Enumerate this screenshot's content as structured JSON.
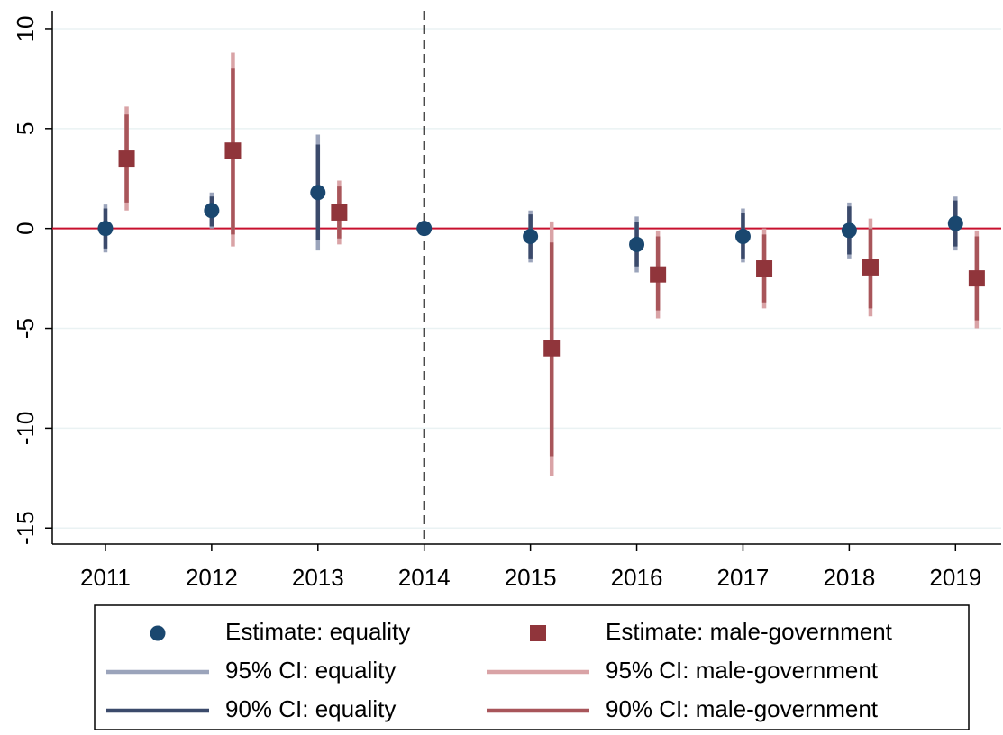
{
  "chart_data": {
    "type": "coefplot",
    "xlim": [
      2010.5,
      2019.43
    ],
    "xticks": [
      2011,
      2012,
      2013,
      2014,
      2015,
      2016,
      2017,
      2018,
      2019
    ],
    "ylim": [
      -15.8,
      10.9
    ],
    "yticks": [
      10,
      5,
      0,
      -5,
      -10,
      -15
    ],
    "grid": true,
    "hline": 0,
    "hline_color": "#c8102e",
    "vline": 2014,
    "legend": "bottom",
    "series": [
      {
        "name": "Estimate: equality",
        "kind": "marker",
        "marker": "circle",
        "color": "#1a476f",
        "x": [
          2011,
          2012,
          2013,
          2014,
          2015,
          2016,
          2017,
          2018,
          2019
        ],
        "values": [
          0,
          0.9,
          1.8,
          0,
          -0.4,
          -0.8,
          -0.4,
          -0.1,
          0.25
        ]
      },
      {
        "name": "Estimate: male-government",
        "kind": "marker",
        "marker": "square",
        "color": "#90353b",
        "x": [
          2011.2,
          2012.2,
          2013.2,
          2014.2,
          2015.2,
          2016.2,
          2017.2,
          2018.2,
          2019.2
        ],
        "values": [
          3.5,
          3.9,
          0.8,
          null,
          -6.0,
          -2.3,
          -2.0,
          -1.95,
          -2.5
        ]
      },
      {
        "name": "95% CI: equality",
        "kind": "interval",
        "color": "#9ba4bb",
        "x": [
          2011,
          2012,
          2013,
          2014,
          2015,
          2016,
          2017,
          2018,
          2019
        ],
        "lower": [
          -1.2,
          0.0,
          -1.1,
          null,
          -1.7,
          -2.2,
          -1.7,
          -1.5,
          -1.1
        ],
        "upper": [
          1.2,
          1.8,
          4.7,
          null,
          0.9,
          0.6,
          1.0,
          1.3,
          1.6
        ]
      },
      {
        "name": "95% CI: male-government",
        "kind": "interval",
        "color": "#d9a3a6",
        "x": [
          2011.2,
          2012.2,
          2013.2,
          2014.2,
          2015.2,
          2016.2,
          2017.2,
          2018.2,
          2019.2
        ],
        "lower": [
          0.9,
          -0.9,
          -0.8,
          null,
          -12.4,
          -4.5,
          -4.0,
          -4.4,
          -5.0
        ],
        "upper": [
          6.1,
          8.8,
          2.4,
          null,
          0.35,
          -0.1,
          0.0,
          0.5,
          -0.1
        ]
      },
      {
        "name": "90% CI: equality",
        "kind": "interval",
        "color": "#3b4a6b",
        "x": [
          2011,
          2012,
          2013,
          2014,
          2015,
          2016,
          2017,
          2018,
          2019
        ],
        "lower": [
          -1.0,
          0.1,
          -0.6,
          null,
          -1.5,
          -1.9,
          -1.5,
          -1.3,
          -0.9
        ],
        "upper": [
          1.0,
          1.6,
          4.2,
          null,
          0.7,
          0.3,
          0.8,
          1.1,
          1.4
        ]
      },
      {
        "name": "90% CI: male-government",
        "kind": "interval",
        "color": "#a8555a",
        "x": [
          2011.2,
          2012.2,
          2013.2,
          2014.2,
          2015.2,
          2016.2,
          2017.2,
          2018.2,
          2019.2
        ],
        "lower": [
          1.3,
          -0.3,
          -0.5,
          null,
          -11.4,
          -4.1,
          -3.7,
          -4.0,
          -4.6
        ],
        "upper": [
          5.7,
          8.0,
          2.1,
          null,
          -0.7,
          -0.4,
          -0.3,
          0.0,
          -0.4
        ]
      }
    ]
  }
}
